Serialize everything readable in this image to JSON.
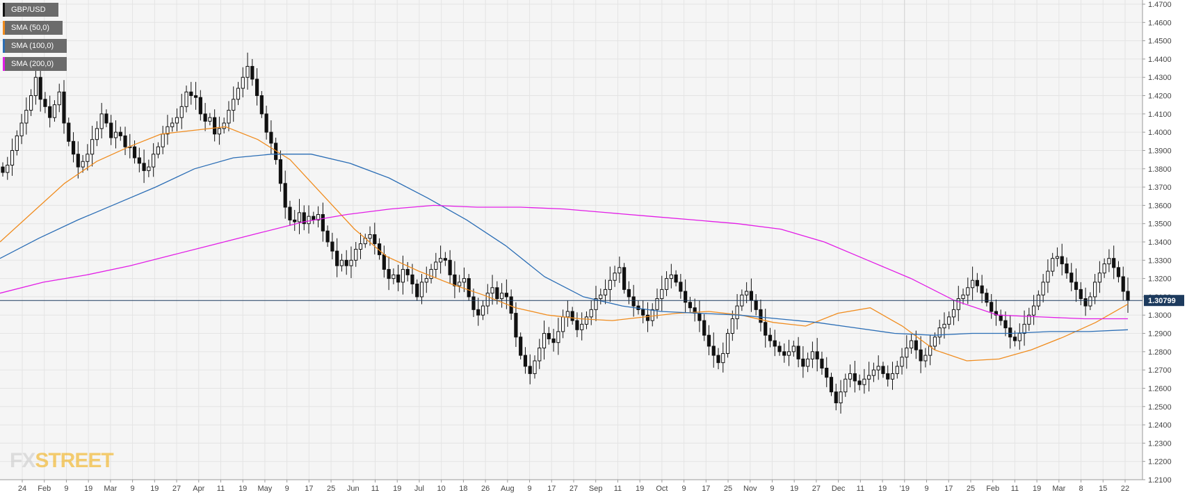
{
  "legend": [
    {
      "label": "GBP/USD",
      "color": "#111111"
    },
    {
      "label": "SMA (50,0)",
      "color": "#f08c1e"
    },
    {
      "label": "SMA (100,0)",
      "color": "#2a6db5"
    },
    {
      "label": "SMA (200,0)",
      "color": "#e21ce6"
    }
  ],
  "logo": {
    "fx": "FX",
    "street": "STREET"
  },
  "colors": {
    "candle_up": "#ffffff",
    "candle_down": "#111111",
    "grid": "#e4e4e4",
    "price_line": "#1d3b5e",
    "background": "#f5f5f5"
  },
  "chart_data": {
    "type": "candlestick",
    "title": "",
    "symbol": "GBP/USD",
    "current_price": "1.30799",
    "ylim": [
      1.21,
      1.47
    ],
    "y_ticks": [
      "1.2100",
      "1.2200",
      "1.2300",
      "1.2400",
      "1.2500",
      "1.2600",
      "1.2700",
      "1.2800",
      "1.2900",
      "1.3000",
      "1.3100",
      "1.3200",
      "1.3300",
      "1.3400",
      "1.3500",
      "1.3600",
      "1.3700",
      "1.3800",
      "1.3900",
      "1.4000",
      "1.4100",
      "1.4200",
      "1.4300",
      "1.4400",
      "1.4500",
      "1.4600",
      "1.4700"
    ],
    "x_ticks": [
      "24",
      "Feb",
      "9",
      "19",
      "Mar",
      "9",
      "19",
      "27",
      "Apr",
      "11",
      "19",
      "May",
      "9",
      "17",
      "25",
      "Jun",
      "11",
      "19",
      "Jul",
      "10",
      "18",
      "26",
      "Aug",
      "9",
      "17",
      "27",
      "Sep",
      "11",
      "19",
      "Oct",
      "9",
      "17",
      "25",
      "Nov",
      "9",
      "19",
      "27",
      "Dec",
      "11",
      "19",
      "'19",
      "9",
      "17",
      "25",
      "Feb",
      "11",
      "19",
      "Mar",
      "8",
      "15",
      "22"
    ],
    "close_series": [
      1.378,
      1.382,
      1.39,
      1.398,
      1.405,
      1.412,
      1.42,
      1.43,
      1.418,
      1.414,
      1.408,
      1.415,
      1.422,
      1.405,
      1.395,
      1.388,
      1.381,
      1.384,
      1.388,
      1.396,
      1.402,
      1.41,
      1.405,
      1.397,
      1.4,
      1.398,
      1.392,
      1.392,
      1.386,
      1.383,
      1.379,
      1.381,
      1.388,
      1.392,
      1.399,
      1.403,
      1.405,
      1.408,
      1.414,
      1.422,
      1.42,
      1.419,
      1.41,
      1.406,
      1.408,
      1.399,
      1.402,
      1.405,
      1.412,
      1.418,
      1.424,
      1.43,
      1.436,
      1.429,
      1.42,
      1.41,
      1.4,
      1.394,
      1.385,
      1.372,
      1.359,
      1.352,
      1.351,
      1.356,
      1.35,
      1.354,
      1.352,
      1.355,
      1.346,
      1.34,
      1.335,
      1.327,
      1.33,
      1.327,
      1.33,
      1.336,
      1.339,
      1.342,
      1.344,
      1.339,
      1.333,
      1.325,
      1.32,
      1.322,
      1.318,
      1.325,
      1.322,
      1.317,
      1.31,
      1.318,
      1.32,
      1.325,
      1.329,
      1.331,
      1.33,
      1.322,
      1.316,
      1.318,
      1.32,
      1.31,
      1.303,
      1.3,
      1.305,
      1.312,
      1.315,
      1.309,
      1.312,
      1.31,
      1.301,
      1.288,
      1.278,
      1.272,
      1.268,
      1.275,
      1.282,
      1.29,
      1.287,
      1.285,
      1.291,
      1.299,
      1.302,
      1.297,
      1.292,
      1.295,
      1.299,
      1.303,
      1.309,
      1.311,
      1.314,
      1.319,
      1.323,
      1.326,
      1.314,
      1.31,
      1.305,
      1.303,
      1.3,
      1.297,
      1.303,
      1.309,
      1.314,
      1.32,
      1.322,
      1.318,
      1.313,
      1.307,
      1.304,
      1.301,
      1.297,
      1.289,
      1.283,
      1.278,
      1.274,
      1.279,
      1.29,
      1.298,
      1.305,
      1.311,
      1.313,
      1.308,
      1.303,
      1.296,
      1.289,
      1.286,
      1.283,
      1.28,
      1.278,
      1.28,
      1.283,
      1.276,
      1.272,
      1.276,
      1.28,
      1.276,
      1.271,
      1.266,
      1.258,
      1.252,
      1.258,
      1.265,
      1.268,
      1.264,
      1.262,
      1.265,
      1.267,
      1.27,
      1.272,
      1.268,
      1.265,
      1.268,
      1.272,
      1.277,
      1.282,
      1.286,
      1.281,
      1.275,
      1.278,
      1.283,
      1.288,
      1.293,
      1.295,
      1.299,
      1.303,
      1.309,
      1.311,
      1.315,
      1.319,
      1.316,
      1.312,
      1.307,
      1.302,
      1.3,
      1.297,
      1.293,
      1.288,
      1.286,
      1.29,
      1.295,
      1.3,
      1.305,
      1.311,
      1.318,
      1.324,
      1.331,
      1.332,
      1.328,
      1.323,
      1.318,
      1.314,
      1.309,
      1.305,
      1.31,
      1.318,
      1.323,
      1.328,
      1.331,
      1.326,
      1.321,
      1.313,
      1.308
    ],
    "series": [
      {
        "name": "SMA (50,0)",
        "color": "#f08c1e",
        "values": [
          1.34,
          1.356,
          1.372,
          1.384,
          1.392,
          1.399,
          1.401,
          1.403,
          1.396,
          1.385,
          1.366,
          1.347,
          1.332,
          1.324,
          1.317,
          1.311,
          1.304,
          1.3,
          1.298,
          1.297,
          1.299,
          1.301,
          1.302,
          1.3,
          1.296,
          1.294,
          1.301,
          1.304,
          1.294,
          1.281,
          1.275,
          1.276,
          1.281,
          1.288,
          1.296,
          1.306
        ]
      },
      {
        "name": "SMA (100,0)",
        "color": "#2a6db5",
        "values": [
          1.331,
          1.342,
          1.352,
          1.361,
          1.37,
          1.38,
          1.386,
          1.388,
          1.388,
          1.383,
          1.375,
          1.364,
          1.352,
          1.338,
          1.321,
          1.31,
          1.305,
          1.302,
          1.301,
          1.3,
          1.298,
          1.296,
          1.293,
          1.29,
          1.289,
          1.29,
          1.29,
          1.291,
          1.291,
          1.292
        ]
      },
      {
        "name": "SMA (200,0)",
        "color": "#e21ce6",
        "values": [
          1.312,
          1.318,
          1.322,
          1.327,
          1.333,
          1.339,
          1.345,
          1.351,
          1.355,
          1.358,
          1.36,
          1.359,
          1.359,
          1.358,
          1.356,
          1.354,
          1.352,
          1.35,
          1.347,
          1.34,
          1.33,
          1.32,
          1.308,
          1.3,
          1.299,
          1.298,
          1.298
        ]
      }
    ],
    "grid": true
  }
}
